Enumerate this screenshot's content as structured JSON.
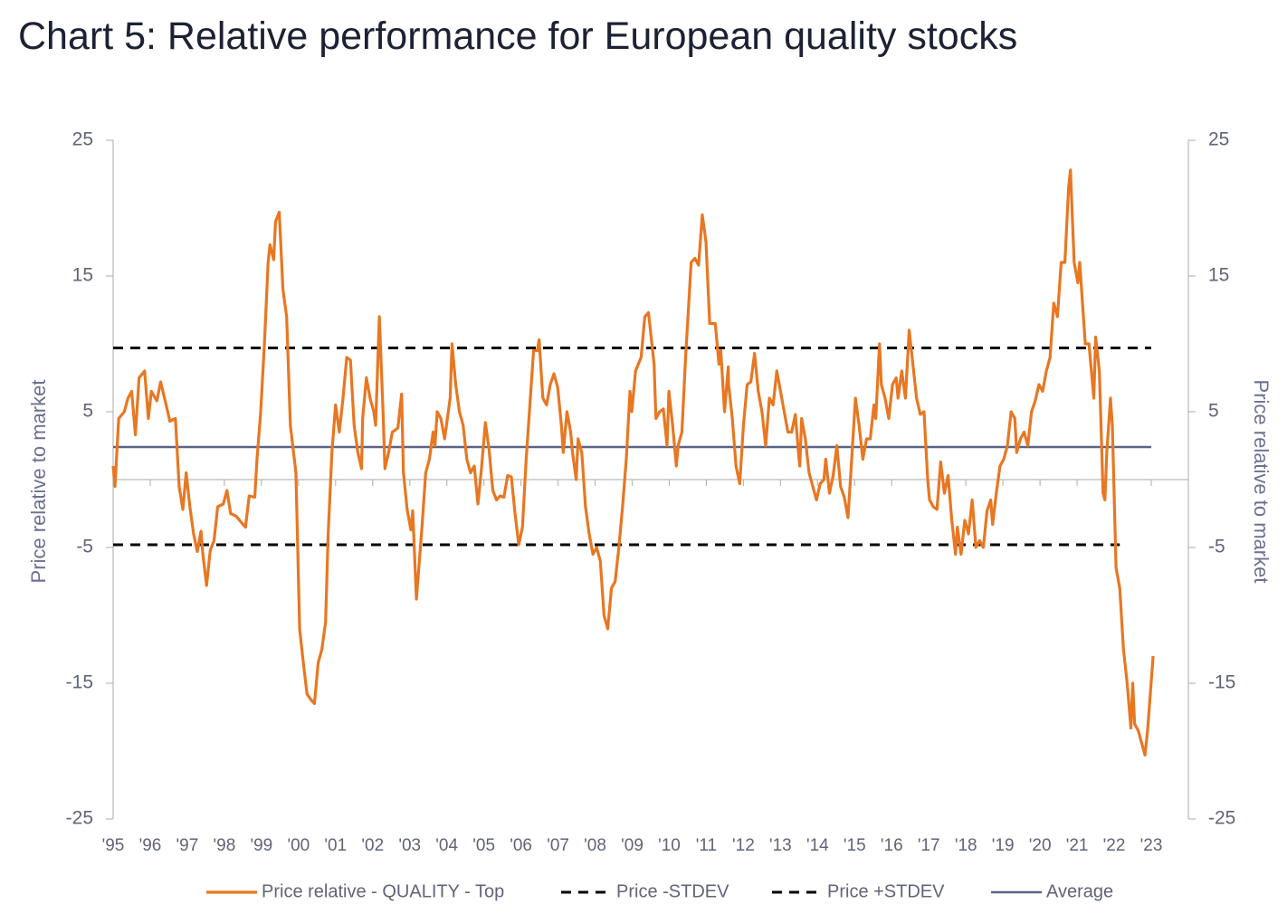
{
  "chart_data": {
    "type": "line",
    "title": "Chart 5: Relative performance for European quality stocks",
    "y_label": "Price relative to market",
    "y2_label": "Price relative to market",
    "xlim": [
      1995,
      2024
    ],
    "xticks": [
      {
        "value": 1995,
        "label": "'95"
      },
      {
        "value": 1996,
        "label": "'96"
      },
      {
        "value": 1997,
        "label": "'97"
      },
      {
        "value": 1998,
        "label": "'98"
      },
      {
        "value": 1999,
        "label": "'99"
      },
      {
        "value": 2000,
        "label": "'00"
      },
      {
        "value": 2001,
        "label": "'01"
      },
      {
        "value": 2002,
        "label": "'02"
      },
      {
        "value": 2003,
        "label": "'03"
      },
      {
        "value": 2004,
        "label": "'04"
      },
      {
        "value": 2005,
        "label": "'05"
      },
      {
        "value": 2006,
        "label": "'06"
      },
      {
        "value": 2007,
        "label": "'07"
      },
      {
        "value": 2008,
        "label": "'08"
      },
      {
        "value": 2009,
        "label": "'09"
      },
      {
        "value": 2010,
        "label": "'10"
      },
      {
        "value": 2011,
        "label": "'11"
      },
      {
        "value": 2012,
        "label": "'12"
      },
      {
        "value": 2013,
        "label": "'13"
      },
      {
        "value": 2014,
        "label": "'14"
      },
      {
        "value": 2015,
        "label": "'15"
      },
      {
        "value": 2016,
        "label": "'16"
      },
      {
        "value": 2017,
        "label": "'17"
      },
      {
        "value": 2018,
        "label": "'18"
      },
      {
        "value": 2019,
        "label": "'19"
      },
      {
        "value": 2020,
        "label": "'20"
      },
      {
        "value": 2021,
        "label": "'21"
      },
      {
        "value": 2022,
        "label": "'22"
      },
      {
        "value": 2023,
        "label": "'23"
      }
    ],
    "ylim": [
      -25,
      25
    ],
    "yticks": [
      -25,
      -15,
      -5,
      5,
      15,
      25
    ],
    "y2lim": [
      -25,
      25
    ],
    "y2ticks": [
      -25,
      -15,
      -5,
      5,
      15,
      25
    ],
    "legend": "bottom",
    "series": [
      {
        "name": "Price relative - QUALITY - Top",
        "color": "#e87722",
        "line_style": "solid",
        "x": [
          1995.0,
          1995.05,
          1995.15,
          1995.3,
          1995.4,
          1995.5,
          1995.6,
          1995.7,
          1995.85,
          1995.95,
          1996.03,
          1996.18,
          1996.28,
          1996.43,
          1996.53,
          1996.68,
          1996.78,
          1996.88,
          1996.97,
          1997.07,
          1997.17,
          1997.27,
          1997.37,
          1997.42,
          1997.52,
          1997.62,
          1997.72,
          1997.82,
          1997.97,
          1998.07,
          1998.17,
          1998.32,
          1998.47,
          1998.57,
          1998.67,
          1998.82,
          1998.88,
          1998.98,
          1999.08,
          1999.18,
          1999.23,
          1999.33,
          1999.38,
          1999.48,
          1999.58,
          1999.68,
          1999.78,
          1999.93,
          2000.03,
          2000.13,
          2000.23,
          2000.33,
          2000.43,
          2000.53,
          2000.63,
          2000.73,
          2000.8,
          2000.9,
          2001.0,
          2001.1,
          2001.2,
          2001.3,
          2001.4,
          2001.5,
          2001.6,
          2001.7,
          2001.73,
          2001.83,
          2001.93,
          2002.03,
          2002.08,
          2002.18,
          2002.28,
          2002.33,
          2002.43,
          2002.53,
          2002.68,
          2002.78,
          2002.83,
          2002.93,
          2003.03,
          2003.08,
          2003.18,
          2003.33,
          2003.43,
          2003.53,
          2003.63,
          2003.68,
          2003.74,
          2003.84,
          2003.94,
          2004.09,
          2004.14,
          2004.24,
          2004.34,
          2004.44,
          2004.54,
          2004.64,
          2004.74,
          2004.84,
          2004.94,
          2005.04,
          2005.14,
          2005.24,
          2005.34,
          2005.44,
          2005.54,
          2005.64,
          2005.74,
          2005.84,
          2005.94,
          2006.04,
          2006.14,
          2006.24,
          2006.34,
          2006.44,
          2006.49,
          2006.59,
          2006.69,
          2006.79,
          2006.89,
          2006.99,
          2007.09,
          2007.14,
          2007.24,
          2007.34,
          2007.39,
          2007.49,
          2007.54,
          2007.64,
          2007.74,
          2007.84,
          2007.94,
          2008.04,
          2008.14,
          2008.24,
          2008.34,
          2008.44,
          2008.54,
          2008.64,
          2008.74,
          2008.84,
          2008.94,
          2008.99,
          2009.09,
          2009.24,
          2009.34,
          2009.44,
          2009.59,
          2009.64,
          2009.74,
          2009.84,
          2009.94,
          2009.99,
          2010.09,
          2010.19,
          2010.24,
          2010.34,
          2010.44,
          2010.59,
          2010.69,
          2010.79,
          2010.89,
          2010.99,
          2011.09,
          2011.24,
          2011.34,
          2011.39,
          2011.49,
          2011.59,
          2011.6,
          2011.7,
          2011.8,
          2011.9,
          2012.0,
          2012.1,
          2012.2,
          2012.3,
          2012.4,
          2012.5,
          2012.6,
          2012.7,
          2012.8,
          2012.9,
          2013.0,
          2013.1,
          2013.2,
          2013.3,
          2013.4,
          2013.5,
          2013.52,
          2013.57,
          2013.67,
          2013.77,
          2013.87,
          2013.97,
          2014.07,
          2014.17,
          2014.22,
          2014.32,
          2014.42,
          2014.52,
          2014.62,
          2014.72,
          2014.82,
          2014.92,
          2015.02,
          2015.12,
          2015.22,
          2015.32,
          2015.42,
          2015.52,
          2015.57,
          2015.67,
          2015.72,
          2015.82,
          2015.92,
          2016.02,
          2016.12,
          2016.17,
          2016.27,
          2016.37,
          2016.47,
          2016.57,
          2016.67,
          2016.77,
          2016.87,
          2016.97,
          2017.02,
          2017.12,
          2017.22,
          2017.32,
          2017.42,
          2017.52,
          2017.62,
          2017.72,
          2017.77,
          2017.87,
          2017.97,
          2018.07,
          2018.17,
          2018.27,
          2018.37,
          2018.47,
          2018.57,
          2018.67,
          2018.72,
          2018.82,
          2018.92,
          2019.02,
          2019.12,
          2019.22,
          2019.32,
          2019.37,
          2019.47,
          2019.57,
          2019.67,
          2019.77,
          2019.87,
          2019.97,
          2020.07,
          2020.17,
          2020.27,
          2020.37,
          2020.47,
          2020.57,
          2020.67,
          2020.77,
          2020.82,
          2020.92,
          2021.02,
          2021.07,
          2021.17,
          2021.22,
          2021.32,
          2021.45,
          2021.5,
          2021.6,
          2021.7,
          2021.75,
          2021.8,
          2021.9,
          2021.95,
          2022.05,
          2022.15,
          2022.25,
          2022.35,
          2022.45,
          2022.5,
          2022.55,
          2022.65,
          2022.83,
          2022.9,
          2023.05
        ],
        "values": [
          1,
          -0.5,
          4.5,
          5,
          6,
          6.5,
          3.3,
          7.5,
          8,
          4.5,
          6.5,
          5.8,
          7.2,
          5.5,
          4.3,
          4.5,
          -0.5,
          -2.2,
          0.5,
          -2,
          -4,
          -5.3,
          -3.8,
          -5.5,
          -7.8,
          -5.2,
          -4.5,
          -2,
          -1.8,
          -0.8,
          -2.5,
          -2.7,
          -3.2,
          -3.5,
          -1.2,
          -1.3,
          1.5,
          5,
          10,
          16,
          17.3,
          16.2,
          19,
          19.7,
          14,
          12,
          4,
          0.5,
          -11,
          -13.5,
          -15.8,
          -16.2,
          -16.5,
          -13.5,
          -12.5,
          -10.5,
          -4,
          2,
          5.5,
          3.5,
          6,
          9,
          8.8,
          4,
          2,
          0.8,
          4.5,
          7.5,
          6,
          5,
          4,
          12,
          5,
          0.8,
          2,
          3.5,
          3.8,
          6.3,
          0.5,
          -2.2,
          -3.7,
          -2.3,
          -8.8,
          -3.5,
          0.5,
          1.5,
          3.5,
          2.5,
          5,
          4.5,
          3,
          6,
          10,
          7,
          5,
          4,
          1.5,
          0.5,
          1,
          -1.8,
          1,
          4.2,
          2.2,
          -0.8,
          -1.5,
          -1.2,
          -1.3,
          0.3,
          0.2,
          -2.5,
          -4.8,
          -3.5,
          1.5,
          5.5,
          9.5,
          9.5,
          10.3,
          6,
          5.5,
          7,
          7.8,
          6.8,
          4,
          2,
          5,
          3.5,
          2,
          0,
          3,
          2,
          -2,
          -4,
          -5.5,
          -5,
          -6,
          -10,
          -11,
          -8,
          -7.5,
          -5,
          -2,
          1.5,
          6.5,
          5,
          8,
          9,
          12,
          12.3,
          8.5,
          4.5,
          5,
          5.2,
          2.5,
          6.5,
          4,
          1,
          2.5,
          3.5,
          9,
          16,
          16.3,
          15.8,
          19.5,
          17.5,
          11.5,
          11.5,
          8.5,
          9.5,
          5,
          8.3,
          7,
          4.5,
          1,
          -0.3,
          4,
          7,
          7.2,
          9.3,
          6.5,
          5,
          2.5,
          6,
          5.5,
          8,
          6.5,
          5,
          3.5,
          3.5,
          4.8,
          1.5,
          1,
          4.5,
          3,
          0.5,
          -0.5,
          -1.5,
          -0.3,
          0,
          1.5,
          -1,
          0.3,
          2.5,
          -0.5,
          -1.3,
          -2.8,
          1.5,
          6,
          4,
          1.5,
          3,
          3,
          5.5,
          4.5,
          10,
          7,
          6,
          4.5,
          7,
          7.5,
          6,
          8,
          6,
          11,
          8.5,
          6,
          4.8,
          5,
          0,
          -1.5,
          -2,
          -2.2,
          1.3,
          -1,
          0.3,
          -3,
          -5.5,
          -3.5,
          -5.5,
          -3,
          -4,
          -1.5,
          -5,
          -4.5,
          -5,
          -2.3,
          -1.5,
          -3.3,
          -1,
          1,
          1.5,
          2.5,
          5,
          4.5,
          2,
          3,
          3.5,
          2.5,
          5,
          5.8,
          7,
          6.5,
          8,
          9,
          13,
          12,
          16,
          16,
          21.5,
          22.8,
          16,
          14.5,
          16,
          12,
          10,
          10,
          6,
          10.5,
          8,
          -1,
          -1.5,
          2,
          6,
          4,
          -6.5,
          -8,
          -12.5,
          -15,
          -18.3,
          -15,
          -18,
          -18.5,
          -20.3,
          -18.5,
          -13
        ]
      },
      {
        "name": "Price -STDEV",
        "color": "#000000",
        "line_style": "dashed",
        "x": [
          1995,
          2022.15
        ],
        "values": [
          -4.8,
          -4.8
        ]
      },
      {
        "name": "Price +STDEV",
        "color": "#000000",
        "line_style": "dashed",
        "x": [
          1995,
          2023
        ],
        "values": [
          9.7,
          9.7
        ]
      },
      {
        "name": "Average",
        "color": "#5b6385",
        "line_style": "solid",
        "x": [
          1995,
          2023
        ],
        "values": [
          2.4,
          2.4
        ]
      }
    ]
  }
}
